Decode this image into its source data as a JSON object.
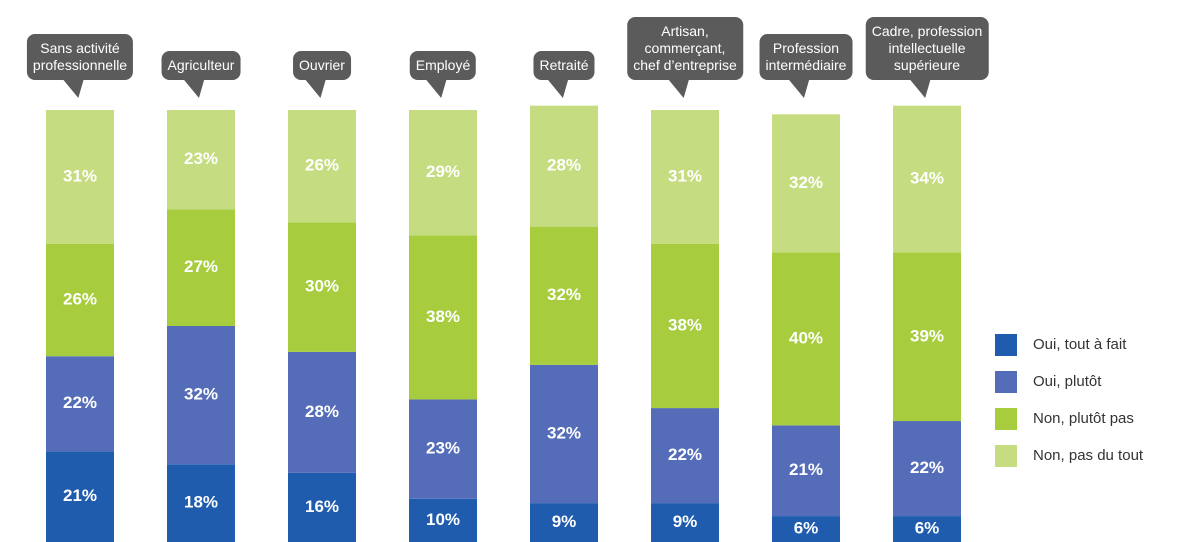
{
  "chart_data": {
    "type": "stacked_bar",
    "categories": [
      "Sans activité\nprofessionnelle",
      "Agriculteur",
      "Ouvrier",
      "Employé",
      "Retraité",
      "Artisan,\ncommerçant,\nchef d’entreprise",
      "Profession\nintermédiaire",
      "Cadre, profession\nintellectuelle\nsupérieure"
    ],
    "series": [
      {
        "name": "Oui, tout à fait",
        "color": "#1f5cae",
        "values": [
          21,
          18,
          16,
          10,
          9,
          9,
          6,
          6
        ],
        "value_labels": [
          "21%",
          "18%",
          "16%",
          "10%",
          "9%",
          "9%",
          "6%",
          "6%"
        ]
      },
      {
        "name": "Oui, plutôt",
        "color": "#556db8",
        "values": [
          22,
          32,
          28,
          23,
          32,
          22,
          21,
          22
        ],
        "value_labels": [
          "22%",
          "32%",
          "28%",
          "23%",
          "32%",
          "22%",
          "21%",
          "22%"
        ]
      },
      {
        "name": "Non, plutôt pas",
        "color": "#a7cd3e",
        "values": [
          26,
          27,
          30,
          38,
          32,
          38,
          40,
          39
        ],
        "value_labels": [
          "26%",
          "27%",
          "30%",
          "38%",
          "32%",
          "38%",
          "40%",
          "39%"
        ]
      },
      {
        "name": "Non, pas du tout",
        "color": "#c5dd80",
        "values": [
          31,
          23,
          26,
          29,
          28,
          31,
          32,
          34
        ],
        "value_labels": [
          "31%",
          "23%",
          "26%",
          "29%",
          "28%",
          "31%",
          "32%",
          "34%"
        ]
      }
    ],
    "ylim": [
      0,
      100
    ],
    "legend": "right"
  }
}
